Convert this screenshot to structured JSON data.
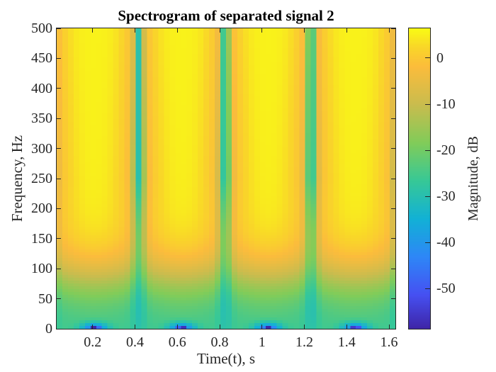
{
  "page": {
    "background": "#ffffff"
  },
  "chart_data": {
    "type": "heatmap",
    "subtype": "spectrogram",
    "title": "Spectrogram of separated signal 2",
    "xlabel": "Time(t), s",
    "ylabel": "Frequency, Hz",
    "colorbar_label": "Magnitude, dB",
    "xlim_s": [
      0.03,
      1.63
    ],
    "ylim_hz": [
      0,
      500
    ],
    "clim_db": [
      -58.7,
      6.45
    ],
    "x_ticks": {
      "values": [
        0.2,
        0.4,
        0.6,
        0.8,
        1,
        1.2,
        1.4,
        1.6
      ],
      "labels": [
        "0.2",
        "0.4",
        "0.6",
        "0.8",
        "1",
        "1.2",
        "1.4",
        "1.6"
      ]
    },
    "y_ticks": {
      "values": [
        0,
        50,
        100,
        150,
        200,
        250,
        300,
        350,
        400,
        450,
        500
      ],
      "labels": [
        "0",
        "50",
        "100",
        "150",
        "200",
        "250",
        "300",
        "350",
        "400",
        "450",
        "500"
      ]
    },
    "colorbar_ticks": {
      "values": [
        0,
        -10,
        -20,
        -30,
        -40,
        -50
      ],
      "labels": [
        "0",
        "-10",
        "-20",
        "-30",
        "-40",
        "-50"
      ]
    },
    "grid": false,
    "legend": "none",
    "axes_color": "#262626",
    "text_color": "#262626",
    "colormap": {
      "name": "parula",
      "stops": [
        [
          0.0,
          62,
          38,
          168
        ],
        [
          0.111,
          70,
          80,
          242
        ],
        [
          0.238,
          46,
          135,
          247
        ],
        [
          0.365,
          18,
          177,
          214
        ],
        [
          0.492,
          55,
          200,
          151
        ],
        [
          0.619,
          129,
          204,
          89
        ],
        [
          0.746,
          201,
          188,
          78
        ],
        [
          0.873,
          251,
          188,
          60
        ],
        [
          0.94,
          249,
          215,
          40
        ],
        [
          1.0,
          249,
          251,
          21
        ]
      ]
    },
    "heatmap_model": {
      "description": "Broadband signal near +5 dB over 0-500 Hz with periodic time notches (vertical teal stripes), low-frequency rolloff to about -26 dB near 0 Hz, and deep DC nulls (blue patches with dark-purple cores) at the lobe centers along the bottom edge.",
      "base_db": 5.5,
      "lowfreq_rolloff": {
        "depth_db": -31.5,
        "center_hz": 85,
        "width_hz": 28
      },
      "notch": {
        "times_s": [
          0.0,
          0.418,
          0.825,
          1.232,
          1.65
        ],
        "narrow": {
          "depth_db": -27,
          "width_s": 0.021,
          "widen_lowfreq": 0.7
        },
        "wide": {
          "depth_db": -8,
          "width_s": 0.085,
          "widen_lowfreq": 0.5
        },
        "depth_scale_min": 0.12,
        "depth_scale_full_hz": 250
      },
      "dc_nulls": {
        "centers_s": [
          0.209,
          0.6215,
          1.0285,
          1.441
        ],
        "main": {
          "depth_db": -20,
          "width_s": 0.065,
          "height_hz": 10
        },
        "core": {
          "depth_db": -26,
          "width_s": 0.02,
          "height_hz": 3.5
        }
      },
      "grid": {
        "cols": 60,
        "rows": 106
      }
    }
  }
}
